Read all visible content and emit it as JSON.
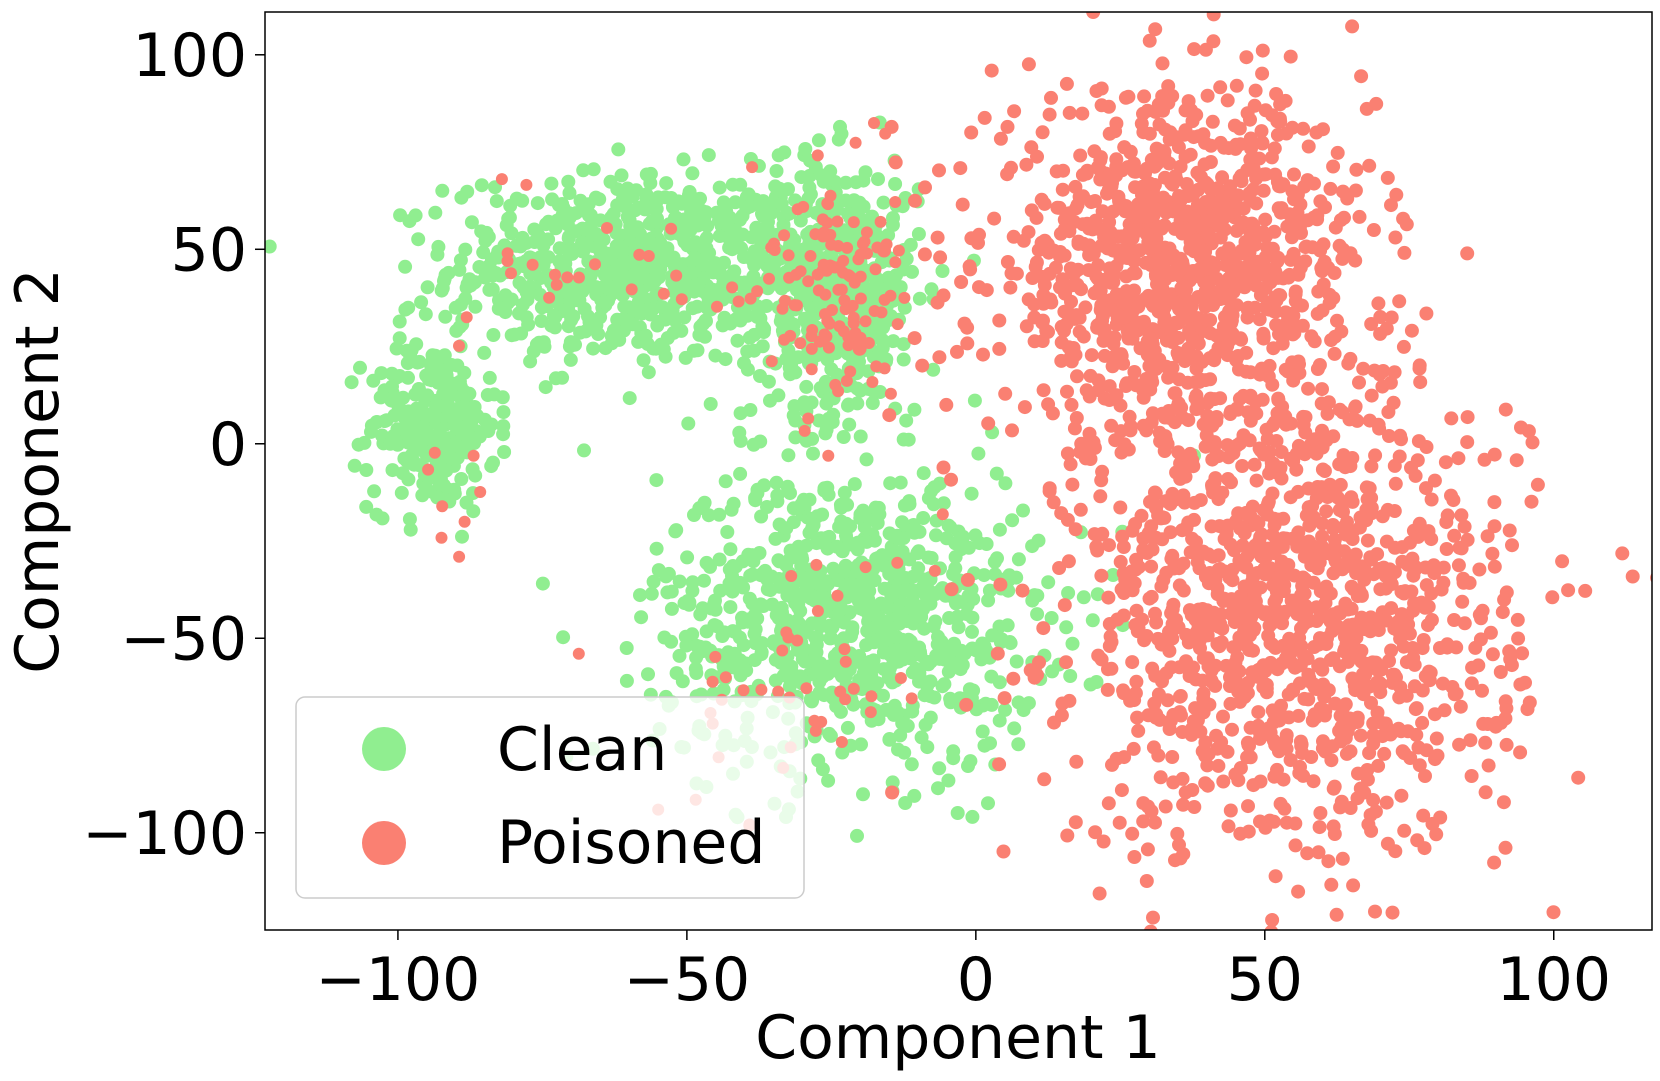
{
  "chart_data": {
    "type": "scatter",
    "title": "",
    "xlabel": "Component 1",
    "ylabel": "Component 2",
    "xlim": [
      -123,
      117
    ],
    "ylim": [
      -125,
      111
    ],
    "xticks": [
      -100,
      -50,
      0,
      50,
      100
    ],
    "xtick_labels": [
      "−100",
      "−50",
      "0",
      "50",
      "100"
    ],
    "yticks": [
      -100,
      -50,
      0,
      50,
      100
    ],
    "ytick_labels": [
      "−100",
      "−50",
      "0",
      "50",
      "100"
    ],
    "grid": false,
    "legend_position": "lower-left",
    "series": [
      {
        "name": "Clean",
        "color": "#90ee90",
        "description_clusters": [
          {
            "center": [
              -60,
              45
            ],
            "spread": [
              28,
              22
            ]
          },
          {
            "center": [
              -94,
              5
            ],
            "spread": [
              10,
              20
            ]
          },
          {
            "center": [
              -25,
              40
            ],
            "spread": [
              14,
              30
            ]
          },
          {
            "center": [
              -22,
              -45
            ],
            "spread": [
              30,
              35
            ]
          }
        ]
      },
      {
        "name": "Poisoned",
        "color": "#fa8072",
        "description_clusters": [
          {
            "center": [
              35,
              45
            ],
            "spread": [
              30,
              40
            ]
          },
          {
            "center": [
              55,
              -45
            ],
            "spread": [
              35,
              55
            ]
          }
        ]
      }
    ]
  },
  "legend": {
    "entries": [
      {
        "label": "Clean",
        "color": "#90ee90"
      },
      {
        "label": "Poisoned",
        "color": "#fa8072"
      }
    ]
  }
}
